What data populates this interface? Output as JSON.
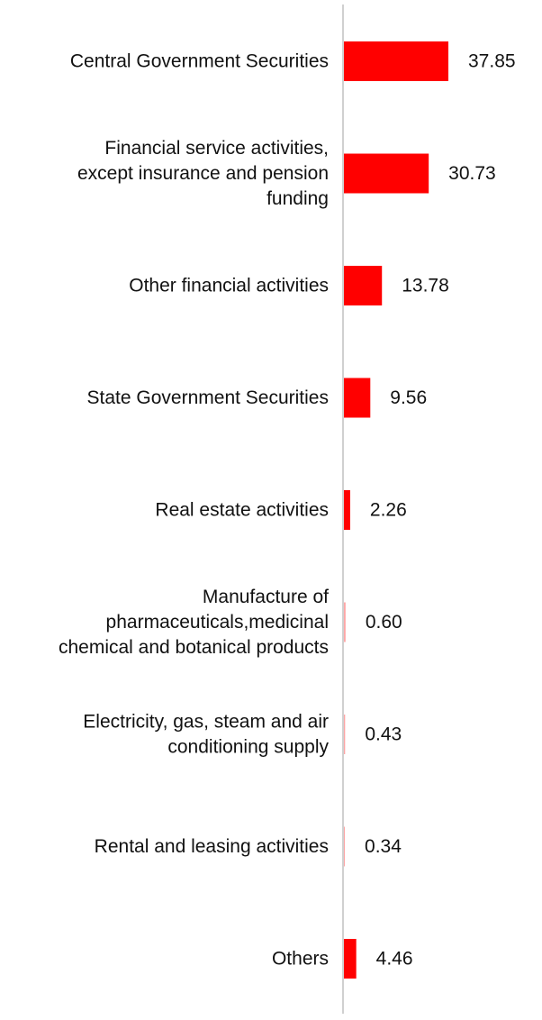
{
  "chart_data": {
    "type": "bar",
    "orientation": "horizontal",
    "title": "",
    "xlabel": "",
    "ylabel": "",
    "grid": false,
    "legend": "none",
    "categories": [
      "Central Government Securities",
      "Financial service activities, except insurance and pension funding",
      "Other financial activities",
      "State Government Securities",
      "Real estate activities",
      "Manufacture of pharmaceuticals,medicinal chemical and botanical products",
      "Electricity, gas, steam and air conditioning supply",
      "Rental and leasing activities",
      "Others"
    ],
    "category_lines": [
      [
        "Central Government Securities"
      ],
      [
        "Financial service activities,",
        "except insurance and pension",
        "funding"
      ],
      [
        "Other financial activities"
      ],
      [
        "State Government Securities"
      ],
      [
        "Real estate activities"
      ],
      [
        "Manufacture of",
        "pharmaceuticals,medicinal",
        "chemical and botanical products"
      ],
      [
        "Electricity, gas, steam and air",
        "conditioning supply"
      ],
      [
        "Rental and leasing activities"
      ],
      [
        "Others"
      ]
    ],
    "values": [
      37.85,
      30.73,
      13.78,
      9.56,
      2.26,
      0.6,
      0.43,
      0.34,
      4.46
    ],
    "value_labels": [
      "37.85",
      "30.73",
      "13.78",
      "9.56",
      "2.26",
      "0.60",
      "0.43",
      "0.34",
      "4.46"
    ],
    "xlim": [
      0,
      40
    ],
    "bar_color": "#ff0000",
    "axis_color": "#d0d0d0"
  }
}
